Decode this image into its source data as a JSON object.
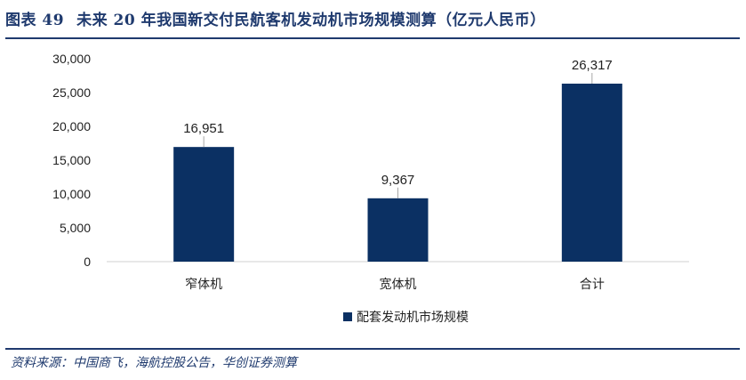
{
  "header": {
    "figure_label": "图表 49",
    "title": "未来 20 年我国新交付民航客机发动机市场规模测算（亿元人民币）"
  },
  "footer": {
    "source": "资料来源：中国商飞，海航控股公告，华创证券测算"
  },
  "colors": {
    "bar": "#0b3063",
    "accent": "#1f3a6e",
    "axis": "#d0d0d0"
  },
  "chart_data": {
    "type": "bar",
    "categories": [
      "窄体机",
      "宽体机",
      "合计"
    ],
    "series": [
      {
        "name": "配套发动机市场规模",
        "values": [
          16951,
          9367,
          26317
        ]
      }
    ],
    "data_labels": [
      "16,951",
      "9,367",
      "26,317"
    ],
    "y_ticks": [
      "0",
      "5,000",
      "10,000",
      "15,000",
      "20,000",
      "25,000",
      "30,000"
    ],
    "ylim": [
      0,
      30000
    ],
    "xlabel": "",
    "ylabel": "",
    "legend": "bottom",
    "grid": false
  }
}
